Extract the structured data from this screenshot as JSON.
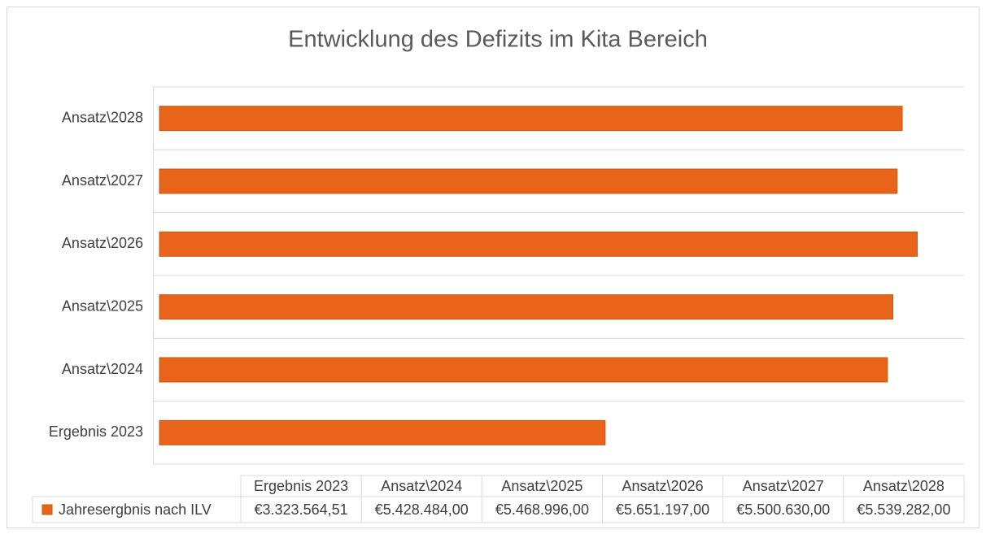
{
  "chart_data": {
    "type": "bar",
    "orientation": "horizontal",
    "title": "Entwicklung des Defizits im Kita Bereich",
    "categories": [
      "Ergebnis 2023",
      "Ansatz\\2024",
      "Ansatz\\2025",
      "Ansatz\\2026",
      "Ansatz\\2027",
      "Ansatz\\2028"
    ],
    "series": [
      {
        "name": "Jahresergbnis nach ILV",
        "color": "#e8641b",
        "values": [
          3323564.51,
          5428484.0,
          5468996.0,
          5651197.0,
          5500630.0,
          5539282.0
        ],
        "value_labels": [
          "€3.323.564,51",
          "€5.428.484,00",
          "€5.468.996,00",
          "€5.651.197,00",
          "€5.500.630,00",
          "€5.539.282,00"
        ]
      }
    ],
    "xlim": [
      0,
      6000000
    ],
    "data_table": true
  }
}
